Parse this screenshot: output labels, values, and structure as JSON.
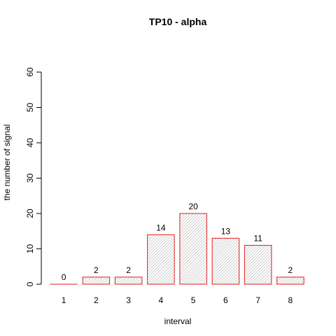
{
  "chart_data": {
    "type": "bar",
    "title": "TP10  -  alpha",
    "xlabel": "interval",
    "ylabel": "the number of signal",
    "categories": [
      "1",
      "2",
      "3",
      "4",
      "5",
      "6",
      "7",
      "8"
    ],
    "values": [
      0,
      2,
      2,
      14,
      20,
      13,
      11,
      2
    ],
    "ylim": [
      0,
      60
    ],
    "yticks": [
      0,
      10,
      20,
      30,
      40,
      50,
      60
    ],
    "grid": false,
    "bar_border_color": "#e31a1c",
    "bar_hatch_color": "#9e9e9e"
  }
}
